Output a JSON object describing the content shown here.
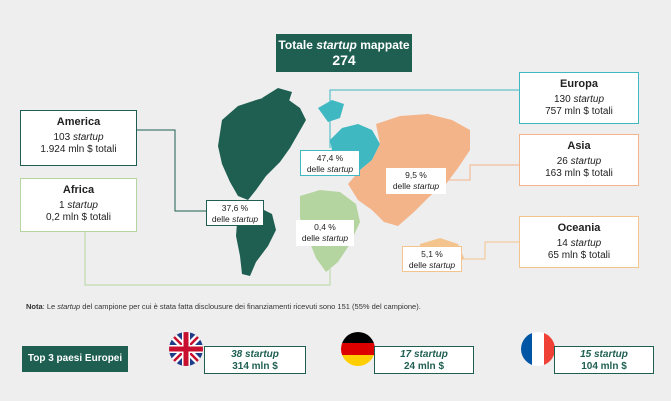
{
  "header": {
    "title": "Totale startup mappate",
    "title_plain": "Totale ",
    "title_italic": "startup",
    "title_rest": " mappate",
    "total": "274"
  },
  "regions": {
    "america": {
      "name": "America",
      "startups": "103",
      "startups_word": "startup",
      "funding": "1.924 mln $ totali"
    },
    "africa": {
      "name": "Africa",
      "startups": "1",
      "startups_word": "startup",
      "funding": "0,2 mln $ totali"
    },
    "europa": {
      "name": "Europa",
      "startups": "130",
      "startups_word": "startup",
      "funding": "757 mln $ totali"
    },
    "asia": {
      "name": "Asia",
      "startups": "26",
      "startups_word": "startup",
      "funding": "163 mln $ totali"
    },
    "oceania": {
      "name": "Oceania",
      "startups": "14",
      "startups_word": "startup",
      "funding": "65 mln $ totali"
    }
  },
  "percent_labels": {
    "america": {
      "value": "37,6 %",
      "text": "delle",
      "italic": "startup"
    },
    "europa": {
      "value": "47,4 %",
      "text": "delle",
      "italic": "startup"
    },
    "asia": {
      "value": "9,5 %",
      "text": "delle",
      "italic": "startup"
    },
    "africa": {
      "value": "0,4 %",
      "text": "delle",
      "italic": "startup"
    },
    "oceania": {
      "value": "5,1 %",
      "text": "delle",
      "italic": "startup"
    }
  },
  "note": {
    "label": "Nota",
    "text_a": ": Le ",
    "italic": "startup",
    "text_b": " del campione per cui è stata fatta disclousure dei finanziamenti ricevuti sono 151 (55% del campione)."
  },
  "top3": {
    "title": "Top 3 paesi Europei",
    "countries": [
      {
        "flag": "uk-flag-icon",
        "startups": "38",
        "word": "startup",
        "funding": "314 mln $"
      },
      {
        "flag": "germany-flag-icon",
        "startups": "17",
        "word": "startup",
        "funding": "24 mln $"
      },
      {
        "flag": "france-flag-icon",
        "startups": "15",
        "word": "startup",
        "funding": "104 mln $"
      }
    ]
  },
  "colors": {
    "america": "#1e5f52",
    "europa": "#3fb8c2",
    "asia": "#f4b48a",
    "africa": "#b5d5a0",
    "oceania": "#f4c48f"
  }
}
